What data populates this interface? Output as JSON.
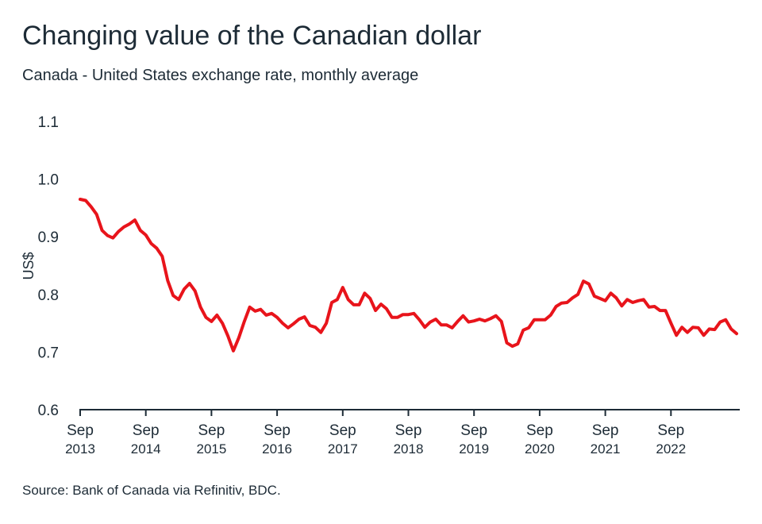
{
  "title": "Changing value of the Canadian dollar",
  "subtitle": "Canada - United States exchange rate, monthly average",
  "source": "Source: Bank of Canada via Refinitiv, BDC.",
  "chart_data": {
    "type": "line",
    "title": "Changing value of the Canadian dollar",
    "subtitle": "Canada - United States exchange rate, monthly average",
    "xlabel": "",
    "ylabel": "US$",
    "ylim": [
      0.6,
      1.1
    ],
    "yticks": [
      "0.6",
      "0.7",
      "0.8",
      "0.9",
      "1.0",
      "1.1"
    ],
    "xticks": [
      {
        "month": "Sep",
        "year": "2013"
      },
      {
        "month": "Sep",
        "year": "2014"
      },
      {
        "month": "Sep",
        "year": "2015"
      },
      {
        "month": "Sep",
        "year": "2016"
      },
      {
        "month": "Sep",
        "year": "2017"
      },
      {
        "month": "Sep",
        "year": "2018"
      },
      {
        "month": "Sep",
        "year": "2019"
      },
      {
        "month": "Sep",
        "year": "2020"
      },
      {
        "month": "Sep",
        "year": "2021"
      },
      {
        "month": "Sep",
        "year": "2022"
      }
    ],
    "x_start": "2013-09",
    "x_end": "2023-09",
    "grid": false,
    "line_color": "#e8141b",
    "values": [
      0.965,
      0.963,
      0.952,
      0.939,
      0.911,
      0.902,
      0.898,
      0.909,
      0.917,
      0.922,
      0.929,
      0.911,
      0.903,
      0.888,
      0.88,
      0.866,
      0.824,
      0.798,
      0.791,
      0.809,
      0.819,
      0.806,
      0.778,
      0.76,
      0.753,
      0.764,
      0.75,
      0.728,
      0.702,
      0.725,
      0.753,
      0.778,
      0.771,
      0.774,
      0.764,
      0.767,
      0.76,
      0.75,
      0.742,
      0.749,
      0.757,
      0.761,
      0.746,
      0.743,
      0.734,
      0.75,
      0.786,
      0.791,
      0.812,
      0.791,
      0.782,
      0.782,
      0.802,
      0.793,
      0.772,
      0.783,
      0.775,
      0.76,
      0.76,
      0.765,
      0.765,
      0.767,
      0.756,
      0.743,
      0.752,
      0.757,
      0.747,
      0.747,
      0.742,
      0.753,
      0.763,
      0.752,
      0.754,
      0.757,
      0.754,
      0.758,
      0.763,
      0.753,
      0.716,
      0.71,
      0.714,
      0.738,
      0.742,
      0.756,
      0.756,
      0.756,
      0.764,
      0.779,
      0.785,
      0.786,
      0.794,
      0.8,
      0.823,
      0.818,
      0.797,
      0.793,
      0.789,
      0.802,
      0.794,
      0.78,
      0.791,
      0.786,
      0.789,
      0.791,
      0.778,
      0.779,
      0.772,
      0.772,
      0.75,
      0.729,
      0.743,
      0.734,
      0.743,
      0.742,
      0.729,
      0.74,
      0.739,
      0.752,
      0.756,
      0.74,
      0.732
    ]
  }
}
